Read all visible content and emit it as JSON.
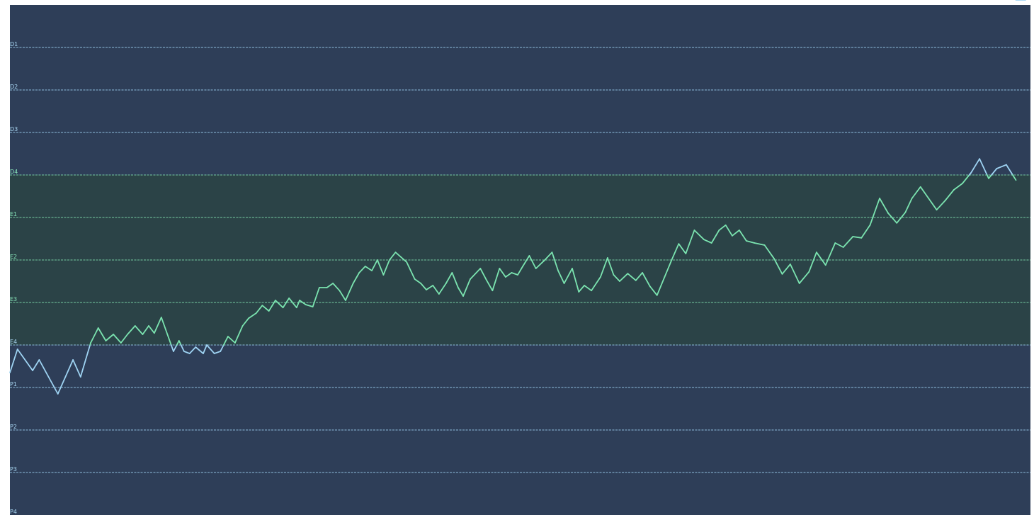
{
  "colors": {
    "background": "#2e3e58",
    "band": "#2b4347",
    "gridline_outer": "#9ed3f2",
    "gridline_band": "#82e3b3",
    "label_outer": "#a9d6f2",
    "label_band": "#86e2b7",
    "series_outer": "#9ed3f2",
    "series_band": "#7be4b0"
  },
  "chart_data": {
    "type": "line",
    "title": "",
    "xlabel": "",
    "ylabel": "",
    "y_levels": [
      "D1",
      "D2",
      "D3",
      "D4",
      "E1",
      "E2",
      "E3",
      "E4",
      "P1",
      "P2",
      "P3",
      "P4"
    ],
    "highlight_band": {
      "from": "D4",
      "to": "E4"
    },
    "grid": true,
    "legend": "none",
    "series": [
      {
        "x": [
          0,
          1.5,
          4.5,
          5.8,
          9.5,
          12.5,
          14,
          16,
          17.5,
          19,
          20.5,
          22,
          23.3,
          24.8,
          26.3,
          27.5,
          28.6,
          30,
          31.2,
          32.4,
          33.5,
          34.5,
          35.6,
          36.8,
          38.3,
          39,
          40.5,
          41.7,
          43.2,
          44.6,
          46.1,
          47.3,
          48.8,
          50,
          51.3,
          52.6,
          54.1,
          55.3,
          56.8,
          57.4,
          58.6,
          60,
          61.3,
          62.8,
          64,
          65.3,
          66.5,
          68,
          69.2,
          70.4,
          71.7,
          72.8,
          74,
          75.2,
          76.4,
          78.6,
          80.2,
          81.4,
          82.5,
          83.8,
          85,
          86.4,
          87.6,
          88.8,
          89.8,
          91.2,
          93.2,
          94.4,
          95.6,
          97,
          98.2,
          99.4,
          100.6,
          101.6,
          102.9,
          104.2,
          105.8,
          107.4,
          108.6,
          109.8,
          111.4,
          112.7,
          113.8,
          115.2,
          117,
          118.4,
          119.6,
          120.8,
          122.4,
          124,
          125.3,
          126.8,
          128.2,
          129.7,
          131.1,
          132.5,
          133.9,
          135.6,
          137.5,
          139,
          140.5,
          141.8,
          143.1,
          144.5,
          145.9,
          147.5,
          149.5,
          151.4,
          153,
          154.6,
          156.4,
          158.3,
          159.8,
          161.6,
          163.5,
          165.1,
          167,
          168.7,
          170.4,
          172.3,
          174,
          175.7,
          177.4,
          178.7,
          180.4,
          182,
          183.6,
          185.3,
          187,
          188.7,
          190.4,
          192.1,
          193.9,
          195.5,
          197.4,
          199.3,
          201.2
        ],
        "y_level_index": [
          7.65,
          7.1,
          7.6,
          7.35,
          8.15,
          7.35,
          7.75,
          6.95,
          6.6,
          6.9,
          6.75,
          6.95,
          6.75,
          6.55,
          6.75,
          6.55,
          6.72,
          6.35,
          6.75,
          7.15,
          6.9,
          7.15,
          7.2,
          7.05,
          7.2,
          7.0,
          7.2,
          7.15,
          6.8,
          6.95,
          6.55,
          6.37,
          6.25,
          6.07,
          6.2,
          5.95,
          6.12,
          5.9,
          6.12,
          5.95,
          6.05,
          6.1,
          5.65,
          5.65,
          5.55,
          5.72,
          5.95,
          5.55,
          5.3,
          5.15,
          5.25,
          5.0,
          5.35,
          5.0,
          4.82,
          5.05,
          5.45,
          5.55,
          5.7,
          5.6,
          5.8,
          5.55,
          5.3,
          5.65,
          5.85,
          5.45,
          5.2,
          5.47,
          5.72,
          5.2,
          5.4,
          5.3,
          5.35,
          5.15,
          4.9,
          5.2,
          5.02,
          4.82,
          5.25,
          5.55,
          5.2,
          5.75,
          5.6,
          5.72,
          5.4,
          4.95,
          5.35,
          5.5,
          5.32,
          5.48,
          5.3,
          5.62,
          5.83,
          5.4,
          5.0,
          4.62,
          4.85,
          4.3,
          4.52,
          4.6,
          4.3,
          4.18,
          4.43,
          4.3,
          4.55,
          4.6,
          4.65,
          4.97,
          5.33,
          5.1,
          5.55,
          5.28,
          4.82,
          5.12,
          4.6,
          4.7,
          4.45,
          4.48,
          4.18,
          3.55,
          3.9,
          4.13,
          3.88,
          3.55,
          3.28,
          3.55,
          3.82,
          3.6,
          3.35,
          3.2,
          2.95,
          2.62,
          3.08,
          2.85,
          2.76,
          3.12
        ]
      }
    ]
  }
}
